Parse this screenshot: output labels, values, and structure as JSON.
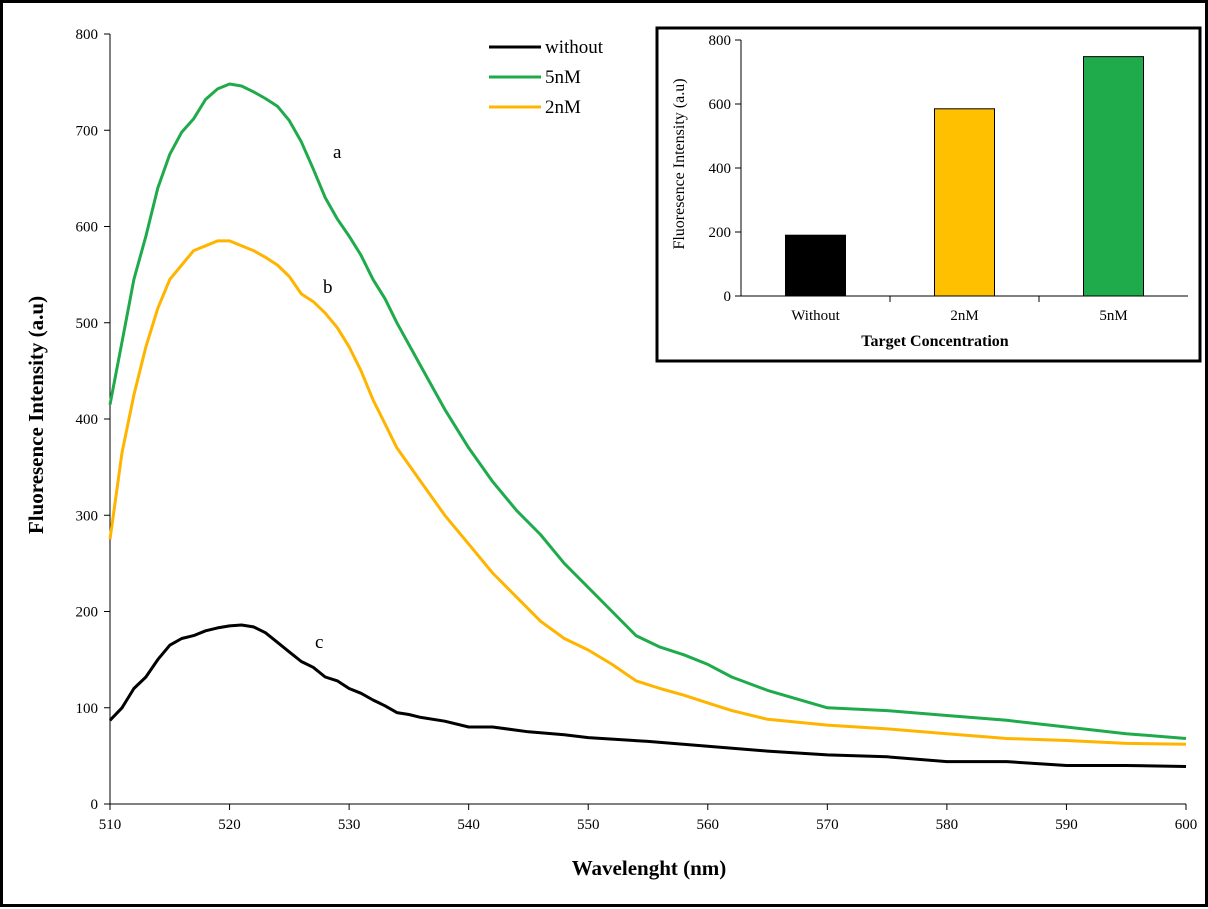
{
  "chart_data": [
    {
      "type": "line",
      "xlabel": "Wavelenght (nm)",
      "ylabel": "Fluoresence Intensity (a.u)",
      "xlim": [
        510,
        600
      ],
      "ylim": [
        0,
        800
      ],
      "xticks": [
        510,
        520,
        530,
        540,
        550,
        560,
        570,
        580,
        590,
        600
      ],
      "yticks": [
        0,
        100,
        200,
        300,
        400,
        500,
        600,
        700,
        800
      ],
      "grid": false,
      "legend_position": "top-center",
      "series": [
        {
          "name": "without",
          "label": "c",
          "color": "#000000",
          "x": [
            510,
            511,
            512,
            513,
            514,
            515,
            516,
            517,
            518,
            519,
            520,
            521,
            522,
            523,
            524,
            525,
            526,
            527,
            528,
            529,
            530,
            531,
            532,
            533,
            534,
            535,
            536,
            538,
            540,
            542,
            545,
            548,
            550,
            555,
            560,
            565,
            570,
            575,
            580,
            585,
            590,
            595,
            600
          ],
          "y": [
            87,
            100,
            120,
            132,
            150,
            165,
            172,
            175,
            180,
            183,
            185,
            186,
            184,
            178,
            168,
            158,
            148,
            142,
            132,
            128,
            120,
            115,
            108,
            102,
            95,
            93,
            90,
            86,
            80,
            80,
            75,
            72,
            69,
            65,
            60,
            55,
            51,
            49,
            44,
            44,
            40,
            40,
            39
          ]
        },
        {
          "name": "5nM",
          "label": "a",
          "color": "#1faa4b",
          "x": [
            510,
            511,
            512,
            513,
            514,
            515,
            516,
            517,
            518,
            519,
            520,
            521,
            522,
            523,
            524,
            525,
            526,
            527,
            528,
            529,
            530,
            531,
            532,
            533,
            534,
            536,
            538,
            540,
            542,
            544,
            546,
            548,
            550,
            552,
            554,
            556,
            558,
            560,
            562,
            565,
            570,
            575,
            580,
            585,
            590,
            595,
            600
          ],
          "y": [
            415,
            480,
            545,
            590,
            640,
            675,
            698,
            712,
            732,
            743,
            748,
            746,
            740,
            733,
            725,
            710,
            688,
            660,
            630,
            608,
            590,
            570,
            545,
            525,
            500,
            455,
            410,
            370,
            335,
            305,
            280,
            250,
            225,
            200,
            175,
            163,
            155,
            145,
            132,
            118,
            100,
            97,
            92,
            87,
            80,
            73,
            68
          ]
        },
        {
          "name": "2nM",
          "label": "b",
          "color": "#ffb400",
          "x": [
            510,
            511,
            512,
            513,
            514,
            515,
            516,
            517,
            518,
            519,
            520,
            521,
            522,
            523,
            524,
            525,
            526,
            527,
            528,
            529,
            530,
            531,
            532,
            533,
            534,
            536,
            538,
            540,
            542,
            544,
            546,
            548,
            550,
            552,
            554,
            556,
            558,
            560,
            562,
            565,
            570,
            575,
            580,
            585,
            590,
            595,
            600
          ],
          "y": [
            275,
            365,
            425,
            475,
            515,
            545,
            560,
            575,
            580,
            585,
            585,
            580,
            575,
            568,
            560,
            548,
            530,
            522,
            510,
            495,
            475,
            450,
            420,
            395,
            370,
            335,
            300,
            270,
            240,
            215,
            190,
            172,
            160,
            145,
            128,
            120,
            113,
            105,
            97,
            88,
            82,
            78,
            73,
            68,
            66,
            63,
            62
          ]
        }
      ]
    },
    {
      "type": "bar",
      "title": "",
      "xlabel": "Target Concentration",
      "ylabel": "Fluoresence Intensity (a.u)",
      "categories": [
        "Without",
        "2nM",
        "5nM"
      ],
      "values": [
        190,
        585,
        748
      ],
      "colors": [
        "#000000",
        "#ffc000",
        "#1faa4b"
      ],
      "ylim": [
        0,
        800
      ],
      "yticks": [
        0,
        200,
        400,
        600,
        800
      ],
      "grid": false,
      "position": "top-right inset"
    }
  ]
}
